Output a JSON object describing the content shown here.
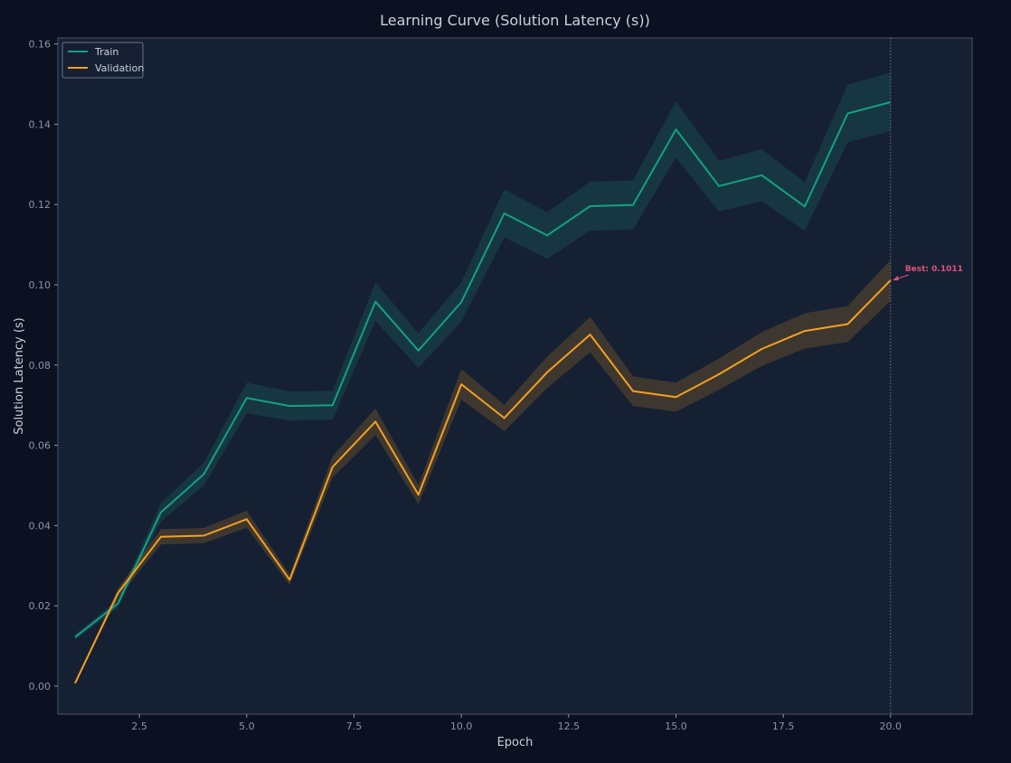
{
  "chart_data": {
    "type": "line",
    "title": "Learning Curve (Solution Latency (s))",
    "xlabel": "Epoch",
    "ylabel": "Solution Latency (s)",
    "xlim": [
      0.6,
      21.9
    ],
    "ylim": [
      -0.007,
      0.1615
    ],
    "xticks": [
      2.5,
      5.0,
      7.5,
      10.0,
      12.5,
      15.0,
      17.5,
      20.0
    ],
    "xtick_labels": [
      "2.5",
      "5.0",
      "7.5",
      "10.0",
      "12.5",
      "15.0",
      "17.5",
      "20.0"
    ],
    "yticks": [
      0.0,
      0.02,
      0.04,
      0.06,
      0.08,
      0.1,
      0.12,
      0.14,
      0.16
    ],
    "ytick_labels": [
      "0.00",
      "0.02",
      "0.04",
      "0.06",
      "0.08",
      "0.10",
      "0.12",
      "0.14",
      "0.16"
    ],
    "grid": false,
    "legend_position": "top-left",
    "x": [
      1,
      2,
      3,
      4,
      5,
      6,
      7,
      8,
      9,
      10,
      11,
      12,
      13,
      14,
      15,
      16,
      17,
      18,
      19,
      20
    ],
    "series": [
      {
        "name": "Train",
        "color": "#14a085",
        "values": [
          0.0122,
          0.0206,
          0.0433,
          0.0528,
          0.0718,
          0.0698,
          0.07,
          0.0958,
          0.0836,
          0.0957,
          0.1178,
          0.1123,
          0.1196,
          0.1199,
          0.1387,
          0.1246,
          0.1273,
          0.1195,
          0.1427,
          0.1455
        ],
        "lower": [
          0.0115,
          0.0195,
          0.041,
          0.05,
          0.068,
          0.0662,
          0.0664,
          0.091,
          0.0793,
          0.0908,
          0.1118,
          0.1065,
          0.1135,
          0.1138,
          0.1317,
          0.1183,
          0.1208,
          0.1135,
          0.1355,
          0.1382
        ],
        "upper": [
          0.0129,
          0.0217,
          0.0456,
          0.0556,
          0.0756,
          0.0734,
          0.0736,
          0.1006,
          0.0879,
          0.1006,
          0.1238,
          0.1181,
          0.1257,
          0.126,
          0.1457,
          0.1309,
          0.1338,
          0.1255,
          0.1499,
          0.1528
        ]
      },
      {
        "name": "Validation",
        "color": "#f5a020",
        "values": [
          0.0007,
          0.0232,
          0.0372,
          0.0375,
          0.0416,
          0.0265,
          0.0546,
          0.0659,
          0.0477,
          0.0752,
          0.0668,
          0.0782,
          0.0876,
          0.0735,
          0.072,
          0.0777,
          0.084,
          0.0885,
          0.0902,
          0.1011
        ],
        "lower": [
          0.0006,
          0.022,
          0.0353,
          0.0356,
          0.0395,
          0.0252,
          0.0519,
          0.0626,
          0.0453,
          0.0714,
          0.0635,
          0.0743,
          0.0832,
          0.0698,
          0.0684,
          0.0738,
          0.0798,
          0.0841,
          0.0857,
          0.096
        ],
        "upper": [
          0.0008,
          0.0244,
          0.0391,
          0.0394,
          0.0437,
          0.0278,
          0.0573,
          0.0692,
          0.0501,
          0.079,
          0.0701,
          0.0821,
          0.092,
          0.0772,
          0.0756,
          0.0816,
          0.0882,
          0.0929,
          0.0947,
          0.1062
        ]
      }
    ],
    "vline_x": 20,
    "annotation": {
      "text": "Best: 0.1011",
      "x": 20,
      "y": 0.1011,
      "color": "#e0507a"
    }
  }
}
